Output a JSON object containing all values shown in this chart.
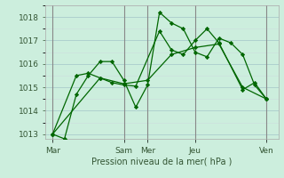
{
  "xlabel": "Pression niveau de la mer( hPa )",
  "bg_color": "#cceedd",
  "grid_color_major": "#aacccc",
  "grid_color_minor": "#ccdddd",
  "line_color": "#006600",
  "ylim": [
    1012.8,
    1018.5
  ],
  "yticks": [
    1013,
    1014,
    1015,
    1016,
    1017,
    1018
  ],
  "xtick_labels": [
    "Mar",
    "Sam",
    "Mer",
    "Jeu",
    "Ven"
  ],
  "xtick_positions": [
    0,
    3,
    4,
    6,
    9
  ],
  "vlines": [
    0,
    3,
    4,
    6,
    9
  ],
  "series": [
    {
      "x": [
        0,
        0.5,
        1.0,
        1.5,
        2.0,
        2.5,
        3.0,
        3.5,
        4.0,
        4.5,
        5.0,
        5.5,
        6.0,
        6.5,
        7.0,
        7.5,
        8.0,
        8.5,
        9.0
      ],
      "y": [
        1013.0,
        1012.8,
        1014.7,
        1015.5,
        1016.1,
        1016.1,
        1015.3,
        1014.15,
        1015.1,
        1018.2,
        1017.75,
        1017.5,
        1016.5,
        1016.3,
        1017.1,
        1016.9,
        1016.4,
        1015.1,
        1014.5
      ]
    },
    {
      "x": [
        0,
        1.0,
        1.5,
        2.0,
        2.5,
        3.0,
        3.5,
        4.5,
        5.0,
        5.5,
        6.0,
        6.5,
        7.0,
        8.0,
        8.5,
        9.0
      ],
      "y": [
        1013.0,
        1015.5,
        1015.6,
        1015.4,
        1015.2,
        1015.1,
        1015.05,
        1017.4,
        1016.6,
        1016.4,
        1017.0,
        1017.5,
        1016.9,
        1014.9,
        1015.2,
        1014.5
      ]
    },
    {
      "x": [
        0,
        2.0,
        3.0,
        4.0,
        5.0,
        6.0,
        7.0,
        8.0,
        9.0
      ],
      "y": [
        1013.0,
        1015.4,
        1015.15,
        1015.3,
        1016.4,
        1016.7,
        1016.85,
        1015.0,
        1014.5
      ]
    }
  ]
}
